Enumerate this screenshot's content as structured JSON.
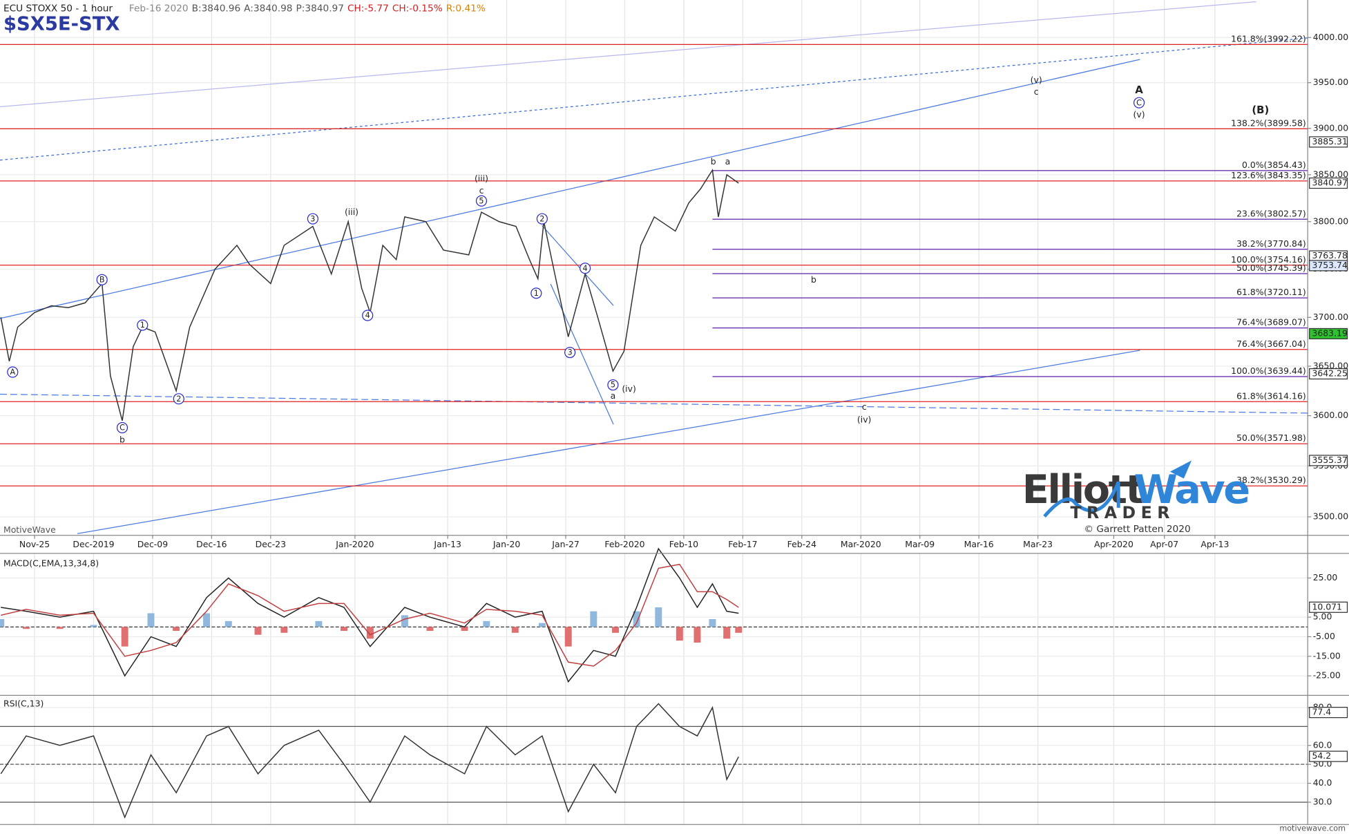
{
  "chart_data": [
    {
      "type": "line",
      "title": "ECU STOXX 50 - 1 hour",
      "symbol": "$SX5E-STX",
      "quote": [
        {
          "text": "Feb-16 2020",
          "color": "#888888"
        },
        {
          "text": "B:3840.96",
          "color": "#555555"
        },
        {
          "text": "A:3840.98",
          "color": "#555555"
        },
        {
          "text": "P:3840.97",
          "color": "#555555"
        },
        {
          "text": "CH:-5.77",
          "color": "#d02020"
        },
        {
          "text": "CH:-0.15%",
          "color": "#d02020"
        },
        {
          "text": "R:0.41%",
          "color": "#e08000"
        }
      ],
      "watermark": "MotiveWave",
      "x": [
        -4,
        -3,
        -2,
        0,
        2,
        4,
        6,
        8,
        9,
        10.4,
        11.7,
        12.8,
        14.3,
        16.8,
        18.4,
        21.4,
        24,
        25.5,
        28,
        29.6,
        33,
        35.2,
        37.2,
        38.8,
        39.8,
        41.3,
        42.9,
        43.9,
        46.4,
        48.5,
        51.5,
        53,
        55.1,
        57.1,
        58.7,
        59.7,
        60.4,
        61.7,
        63.3,
        65.3,
        66.8,
        68.6,
        69.9,
        71.9,
        73.5,
        76,
        77.6,
        79,
        80.4,
        81.1,
        82.1,
        83.5
      ],
      "values": [
        3700,
        3655,
        3690,
        3705,
        3712,
        3710,
        3715,
        3735,
        3640,
        3595,
        3670,
        3690,
        3685,
        3625,
        3690,
        3750,
        3775,
        3755,
        3735,
        3775,
        3795,
        3745,
        3800,
        3730,
        3705,
        3775,
        3760,
        3805,
        3800,
        3770,
        3765,
        3810,
        3800,
        3795,
        3760,
        3740,
        3800,
        3745,
        3680,
        3745,
        3700,
        3645,
        3665,
        3775,
        3805,
        3790,
        3820,
        3835,
        3855,
        3805,
        3850,
        3841
      ],
      "color": "#333333",
      "xlim": [
        -4.1,
        151
      ],
      "xticks": [
        {
          "value": 0,
          "label": "Nov-25"
        },
        {
          "value": 7,
          "label": "Dec-2019"
        },
        {
          "value": 14,
          "label": "Dec-09"
        },
        {
          "value": 21,
          "label": "Dec-16"
        },
        {
          "value": 28,
          "label": "Dec-23"
        },
        {
          "value": 38,
          "label": "Jan-2020"
        },
        {
          "value": 49,
          "label": "Jan-13"
        },
        {
          "value": 56,
          "label": "Jan-20"
        },
        {
          "value": 63,
          "label": "Jan-27"
        },
        {
          "value": 70,
          "label": "Feb-2020"
        },
        {
          "value": 77,
          "label": "Feb-10"
        },
        {
          "value": 84,
          "label": "Feb-17"
        },
        {
          "value": 91,
          "label": "Feb-24"
        },
        {
          "value": 98,
          "label": "Mar-2020"
        },
        {
          "value": 105,
          "label": "Mar-09"
        },
        {
          "value": 112,
          "label": "Mar-16"
        },
        {
          "value": 119,
          "label": "Mar-23"
        },
        {
          "value": 128,
          "label": "Apr-2020"
        },
        {
          "value": 134,
          "label": "Apr-07"
        },
        {
          "value": 140,
          "label": "Apr-13"
        }
      ],
      "ylim": [
        3482,
        4042
      ],
      "log": true,
      "grid": true,
      "yticks": [
        {
          "value": 3500,
          "label": "3500.00"
        },
        {
          "value": 3550,
          "label": "3550.00"
        },
        {
          "value": 3600,
          "label": "3600.00"
        },
        {
          "value": 3650,
          "label": "3650.00"
        },
        {
          "value": 3700,
          "label": "3700.00"
        },
        {
          "value": 3750,
          "label": "3750.00"
        },
        {
          "value": 3800,
          "label": "3800.00"
        },
        {
          "value": 3850,
          "label": "3850.00"
        },
        {
          "value": 3900,
          "label": "3900.00"
        },
        {
          "value": 3950,
          "label": "3950.00"
        },
        {
          "value": 4000,
          "label": "4000.00"
        }
      ],
      "fib_levels_full": {
        "color": "#e02020",
        "levels": [
          {
            "value": 3992.22,
            "label": "161.8%(3992.22)"
          },
          {
            "value": 3899.58,
            "label": "138.2%(3899.58)"
          },
          {
            "value": 3843.35,
            "label": "123.6%(3843.35)"
          },
          {
            "value": 3754.16,
            "label": "100.0%(3754.16)"
          },
          {
            "value": 3667.04,
            "label": "76.4%(3667.04)"
          },
          {
            "value": 3614.16,
            "label": "61.8%(3614.16)"
          },
          {
            "value": 3571.98,
            "label": "50.0%(3571.98)"
          },
          {
            "value": 3530.29,
            "label": "38.2%(3530.29)"
          }
        ]
      },
      "fib_levels_from_high": {
        "color": "#5b1fa8",
        "levels": [
          {
            "value": 3854.43,
            "label": "0.0%(3854.43)"
          },
          {
            "value": 3802.57,
            "label": "23.6%(3802.57)"
          },
          {
            "value": 3770.84,
            "label": "38.2%(3770.84)"
          },
          {
            "value": 3745.39,
            "label": "50.0%(3745.39)"
          },
          {
            "value": 3720.11,
            "label": "61.8%(3720.11)"
          },
          {
            "value": 3689.07,
            "label": "76.4%(3689.07)"
          },
          {
            "value": 3639.44,
            "label": "100.0%(3639.44)"
          }
        ]
      },
      "price_markers": [
        {
          "value": 3885.31,
          "color": "#ffffff"
        },
        {
          "value": 3840.97,
          "color": "#ffffff"
        },
        {
          "value": 3763.78,
          "color": "#ffffff"
        },
        {
          "value": 3753.74,
          "color": "#dde8ff"
        },
        {
          "value": 3683.19,
          "color": "#2fc12f"
        },
        {
          "value": 3642.25,
          "color": "#ffffff"
        },
        {
          "value": 3555.37,
          "color": "#ffffff"
        }
      ],
      "annotations": [
        {
          "text": "A",
          "x": -2.6,
          "y": 3644,
          "color": "#2a2ad0",
          "circled": true
        },
        {
          "text": "B",
          "x": 8,
          "y": 3739,
          "color": "#2a2ad0",
          "circled": true
        },
        {
          "text": "C",
          "x": 10.4,
          "y": 3588,
          "color": "#2a2ad0",
          "circled": true
        },
        {
          "text": "b",
          "x": 10.4,
          "y": 3576,
          "color": "#2a2ad0",
          "circled": false
        },
        {
          "text": "1",
          "x": 12.8,
          "y": 3692,
          "color": "#2a2ad0",
          "circled": true
        },
        {
          "text": "2",
          "x": 17.1,
          "y": 3617,
          "color": "#2a2ad0",
          "circled": true
        },
        {
          "text": "3",
          "x": 33,
          "y": 3803,
          "color": "#2a2ad0",
          "circled": true
        },
        {
          "text": "(iii)",
          "x": 37.6,
          "y": 3810,
          "color": "#d02020",
          "circled": false
        },
        {
          "text": "4",
          "x": 39.5,
          "y": 3702,
          "color": "#2a2ad0",
          "circled": true
        },
        {
          "text": "(iii)",
          "x": 53,
          "y": 3846,
          "color": "#2a2ad0",
          "circled": false
        },
        {
          "text": "c",
          "x": 53,
          "y": 3833,
          "color": "#2a2ad0",
          "circled": false
        },
        {
          "text": "5",
          "x": 53,
          "y": 3822,
          "color": "#2a2ad0",
          "circled": true
        },
        {
          "text": "2",
          "x": 60.2,
          "y": 3803,
          "color": "#2a2ad0",
          "circled": true
        },
        {
          "text": "1",
          "x": 59.5,
          "y": 3725,
          "color": "#2a2ad0",
          "circled": true
        },
        {
          "text": "3",
          "x": 63.5,
          "y": 3664,
          "color": "#2a2ad0",
          "circled": true
        },
        {
          "text": "4",
          "x": 65.3,
          "y": 3751,
          "color": "#2a2ad0",
          "circled": true
        },
        {
          "text": "5",
          "x": 68.6,
          "y": 3631,
          "color": "#2a2ad0",
          "circled": true
        },
        {
          "text": "a",
          "x": 68.6,
          "y": 3620,
          "color": "#2a2ad0",
          "circled": false
        },
        {
          "text": "(iv)",
          "x": 70.5,
          "y": 3627,
          "color": "#d02020",
          "circled": false
        },
        {
          "text": "b",
          "x": 80.5,
          "y": 3864,
          "color": "#2a2ad0",
          "circled": false
        },
        {
          "text": "a",
          "x": 82.2,
          "y": 3864,
          "color": "#d02020",
          "circled": false
        },
        {
          "text": "b",
          "x": 92.4,
          "y": 3739,
          "color": "#d02020",
          "circled": false
        },
        {
          "text": "c",
          "x": 98.4,
          "y": 3609,
          "color": "#2a2ad0",
          "circled": false
        },
        {
          "text": "(iv)",
          "x": 98.4,
          "y": 3596,
          "color": "#2a2ad0",
          "circled": false
        },
        {
          "text": "(v)",
          "x": 118.8,
          "y": 3953,
          "color": "#d02020",
          "circled": false
        },
        {
          "text": "c",
          "x": 118.8,
          "y": 3940,
          "color": "#d02020",
          "circled": false
        },
        {
          "text": "A",
          "x": 131,
          "y": 3942,
          "color": "#1010c0",
          "circled": false
        },
        {
          "text": "C",
          "x": 131,
          "y": 3928,
          "color": "#2a2ad0",
          "circled": true
        },
        {
          "text": "(v)",
          "x": 131,
          "y": 3915,
          "color": "#2a2ad0",
          "circled": false
        },
        {
          "text": "(B)",
          "x": 145.4,
          "y": 3920,
          "color": "#d02020",
          "circled": false
        }
      ],
      "logo": {
        "word1": "Elliott",
        "word2": "Wave",
        "word3": "TRADER",
        "credit": "© Garrett Patten 2020"
      },
      "footer": "motivewave.com"
    },
    {
      "type": "macd",
      "title": "MACD(C,EMA,13,34,8)",
      "x": [
        -4,
        -1,
        3,
        7,
        10.7,
        13.8,
        16.8,
        20.4,
        23,
        26.5,
        29.6,
        33.7,
        36.7,
        39.8,
        43.9,
        46.9,
        51,
        53.6,
        57,
        60.2,
        63.3,
        66.3,
        68.9,
        71.4,
        74,
        76.5,
        78.6,
        80.4,
        82.1,
        83.5
      ],
      "series": [
        {
          "color": "#222222",
          "values": [
            10,
            8,
            5,
            8,
            -25,
            -5,
            -10,
            15,
            25,
            12,
            5,
            15,
            10,
            -10,
            10,
            5,
            0,
            12,
            5,
            8,
            -28,
            -12,
            -15,
            10,
            40,
            25,
            10,
            22,
            8,
            7
          ]
        },
        {
          "color": "#c04040",
          "values": [
            6,
            9,
            6,
            7,
            -15,
            -12,
            -8,
            8,
            22,
            16,
            8,
            12,
            12,
            -4,
            4,
            7,
            2,
            9,
            8,
            6,
            -18,
            -20,
            -12,
            2,
            30,
            32,
            18,
            18,
            14,
            10
          ]
        }
      ],
      "histogram": {
        "pos_color": "#8fb8dc",
        "neg_color": "#e07070",
        "values": [
          4,
          -1,
          -1,
          1,
          -10,
          7,
          -2,
          7,
          3,
          -4,
          -3,
          3,
          -2,
          -6,
          6,
          -2,
          -2,
          3,
          -3,
          2,
          -10,
          8,
          -3,
          8,
          10,
          -7,
          -8,
          4,
          -6,
          -3
        ]
      },
      "ylim": [
        -35,
        36.7
      ],
      "yticks": [
        {
          "value": 25,
          "label": "25.00"
        },
        {
          "value": 5,
          "label": "5.00"
        },
        {
          "value": -5,
          "label": "-5.00"
        },
        {
          "value": -15,
          "label": "-15.00"
        },
        {
          "value": -25,
          "label": "-25.00"
        }
      ],
      "zero_line": 0,
      "price_markers": [
        {
          "value": 10.071,
          "color": "#ffffff"
        }
      ]
    },
    {
      "type": "rsi",
      "title": "RSI(C,13)",
      "x": [
        -4,
        -1,
        3,
        7,
        10.7,
        13.8,
        16.8,
        20.4,
        23,
        26.5,
        29.6,
        33.7,
        36.7,
        39.8,
        43.9,
        46.9,
        51,
        53.6,
        57,
        60.2,
        63.3,
        66.3,
        68.9,
        71.4,
        74,
        76.5,
        78.6,
        80.4,
        82.1,
        83.5
      ],
      "values": [
        45,
        65,
        60,
        65,
        22,
        55,
        35,
        65,
        70,
        45,
        60,
        68,
        50,
        30,
        65,
        55,
        45,
        70,
        55,
        65,
        25,
        50,
        35,
        70,
        82,
        70,
        65,
        80,
        42,
        54
      ],
      "color": "#333333",
      "ylim": [
        18.2,
        85.5
      ],
      "yticks": [
        {
          "value": 30,
          "label": "30.0"
        },
        {
          "value": 40,
          "label": "40.0"
        },
        {
          "value": 50,
          "label": "50.0"
        },
        {
          "value": 60,
          "label": "60.0"
        },
        {
          "value": 80,
          "label": "80.0"
        }
      ],
      "levels": [
        70,
        50,
        30
      ],
      "price_markers": [
        {
          "value": 77.4,
          "color": "#ffffff"
        },
        {
          "value": 54.2,
          "color": "#ffffff"
        }
      ]
    }
  ]
}
